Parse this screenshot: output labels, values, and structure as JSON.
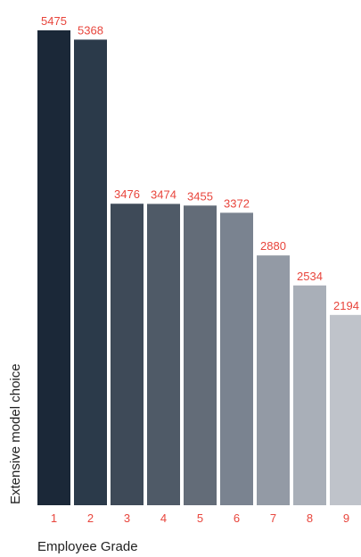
{
  "chart_data": {
    "type": "bar",
    "title": "",
    "xlabel": "Employee Grade",
    "ylabel": "Extensive model choice",
    "categories": [
      "1",
      "2",
      "3",
      "4",
      "5",
      "6",
      "7",
      "8",
      "9"
    ],
    "values": [
      5475,
      5368,
      3476,
      3474,
      3455,
      3372,
      2880,
      2534,
      2194
    ],
    "ylim": [
      0,
      5475
    ],
    "grid": false,
    "legend": "none",
    "colors": [
      "#1b2838",
      "#2b3a4a",
      "#3e4a58",
      "#4f5a67",
      "#636c78",
      "#7a8390",
      "#939aa5",
      "#a9afb8",
      "#bfc3ca"
    ],
    "label_color": "#e8453c"
  }
}
